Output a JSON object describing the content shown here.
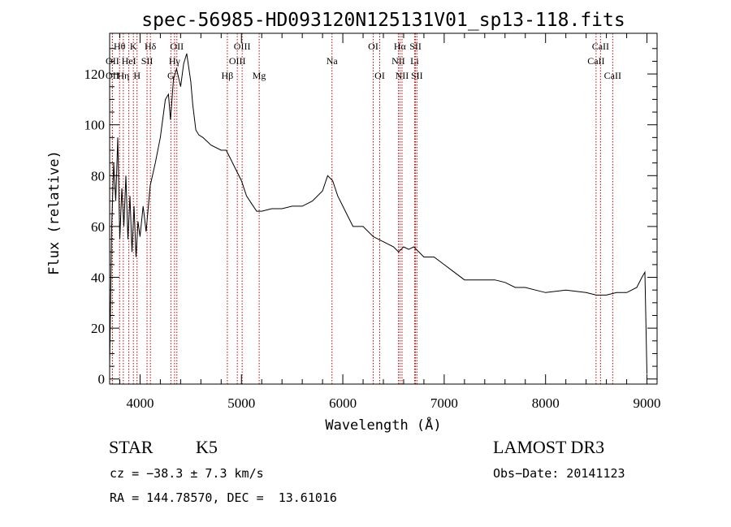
{
  "chart_data": {
    "type": "line",
    "title": "spec-56985-HD093120N125131V01_sp13-118.fits",
    "xlabel": "Wavelength (Å)",
    "ylabel": "Flux (relative)",
    "xlim": [
      3700,
      9100
    ],
    "ylim": [
      -2,
      136
    ],
    "xticks": [
      4000,
      5000,
      6000,
      7000,
      8000,
      9000
    ],
    "yticks": [
      0,
      20,
      40,
      60,
      80,
      100,
      120
    ],
    "series": [
      {
        "name": "flux",
        "x": [
          3700,
          3720,
          3740,
          3760,
          3780,
          3800,
          3820,
          3840,
          3860,
          3880,
          3900,
          3920,
          3940,
          3960,
          3980,
          4000,
          4030,
          4060,
          4100,
          4150,
          4200,
          4250,
          4280,
          4300,
          4330,
          4360,
          4400,
          4430,
          4460,
          4500,
          4520,
          4550,
          4580,
          4620,
          4700,
          4800,
          4850,
          4900,
          4950,
          5000,
          5050,
          5100,
          5150,
          5200,
          5300,
          5400,
          5500,
          5600,
          5700,
          5800,
          5850,
          5900,
          5950,
          6000,
          6050,
          6100,
          6200,
          6300,
          6400,
          6500,
          6550,
          6600,
          6650,
          6700,
          6800,
          6900,
          7000,
          7100,
          7200,
          7300,
          7400,
          7500,
          7600,
          7700,
          7800,
          7900,
          8000,
          8200,
          8400,
          8500,
          8600,
          8700,
          8800,
          8900,
          8950,
          8980,
          9000
        ],
        "values": [
          5,
          60,
          85,
          70,
          95,
          55,
          75,
          60,
          80,
          55,
          72,
          50,
          68,
          48,
          62,
          56,
          68,
          58,
          76,
          85,
          95,
          110,
          112,
          102,
          118,
          122,
          115,
          124,
          128,
          117,
          108,
          98,
          96,
          95,
          92,
          90,
          90,
          86,
          82,
          78,
          72,
          69,
          66,
          66,
          67,
          67,
          68,
          68,
          70,
          74,
          80,
          78,
          72,
          68,
          64,
          60,
          60,
          56,
          54,
          52,
          50,
          52,
          51,
          52,
          48,
          48,
          45,
          42,
          39,
          39,
          39,
          39,
          38,
          36,
          36,
          35,
          34,
          35,
          34,
          33,
          33,
          34,
          34,
          36,
          40,
          42,
          2
        ]
      }
    ],
    "lines": [
      {
        "name": "Na",
        "wave": 5893,
        "row": 1
      },
      {
        "name": "Mg",
        "wave": 5175,
        "row": 2
      },
      {
        "name": "Hβ",
        "wave": 4861,
        "row": 2
      },
      {
        "name": "OIII",
        "wave": 5007,
        "row": 0
      },
      {
        "name": "OIII",
        "wave": 4959,
        "row": 1
      },
      {
        "name": "OII",
        "wave": 4363,
        "row": 0
      },
      {
        "name": "Hγ",
        "wave": 4340,
        "row": 1
      },
      {
        "name": "G",
        "wave": 4304,
        "row": 2
      },
      {
        "name": "Hδ",
        "wave": 4102,
        "row": 0
      },
      {
        "name": "SII",
        "wave": 4069,
        "row": 1
      },
      {
        "name": "H",
        "wave": 3970,
        "row": 2
      },
      {
        "name": "K",
        "wave": 3934,
        "row": 0
      },
      {
        "name": "HeI",
        "wave": 3889,
        "row": 1
      },
      {
        "name": "Hη",
        "wave": 3835,
        "row": 2
      },
      {
        "name": "Hθ",
        "wave": 3798,
        "row": 0
      },
      {
        "name": "OII",
        "wave": 3727,
        "row": 1
      },
      {
        "name": "OII",
        "wave": 3727,
        "row": 2
      },
      {
        "name": "OI",
        "wave": 6300,
        "row": 0
      },
      {
        "name": "OI",
        "wave": 6364,
        "row": 2
      },
      {
        "name": "Hα",
        "wave": 6563,
        "row": 0
      },
      {
        "name": "NII",
        "wave": 6548,
        "row": 1
      },
      {
        "name": "NII",
        "wave": 6584,
        "row": 2
      },
      {
        "name": "SII",
        "wave": 6717,
        "row": 0
      },
      {
        "name": "Li",
        "wave": 6708,
        "row": 1
      },
      {
        "name": "SII",
        "wave": 6731,
        "row": 2
      },
      {
        "name": "CaII",
        "wave": 8542,
        "row": 0
      },
      {
        "name": "CaII",
        "wave": 8498,
        "row": 1
      },
      {
        "name": "CaII",
        "wave": 8662,
        "row": 2
      }
    ]
  },
  "info": {
    "class": "STAR",
    "subclass": "K5",
    "survey": "LAMOST DR3",
    "cz": "cz = −38.3 ± 7.3 km/s",
    "obs_date": "Obs−Date: 20141123",
    "radec": "RA = 144.78570, DEC =  13.61016"
  },
  "colors": {
    "line_marker": "#c00000",
    "spectrum": "#000000"
  }
}
